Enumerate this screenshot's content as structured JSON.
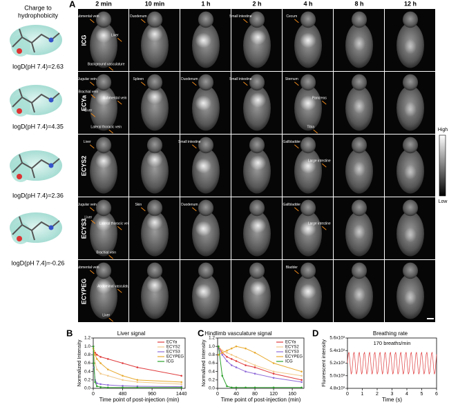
{
  "molecules": {
    "title": [
      "Charge to",
      "hydrophobicity"
    ],
    "labels": [
      "logD(pH 7.4)=2.63",
      "logD(pH 7.4)=4.35",
      "logD(pH 7.4)=2.36",
      "logD(pH 7.4)=-0.26"
    ]
  },
  "panel_a": {
    "letter": "A",
    "columns": [
      "2 min",
      "10 min",
      "1 h",
      "2 h",
      "4 h",
      "8 h",
      "12 h"
    ],
    "rows": [
      {
        "label": "ICG",
        "cells": [
          [
            "Submental vein",
            "Liver",
            "Background vasculature"
          ],
          [
            "Duodenum"
          ],
          [],
          [
            "Small intestine"
          ],
          [
            "Cecum"
          ],
          [],
          []
        ]
      },
      {
        "label": "ECYa",
        "cells": [
          [
            "Jugular vein",
            "Submental vein",
            "Lateral thoracic vein",
            "Brachial vein",
            "Liver"
          ],
          [
            "Spleen"
          ],
          [
            "Duodenum"
          ],
          [
            "Small intestine"
          ],
          [
            "Sternum",
            "Pancreas",
            "Tibia"
          ],
          [],
          []
        ]
      },
      {
        "label": "ECYS2",
        "cells": [
          [
            "Liver"
          ],
          [],
          [
            "Small intestine"
          ],
          [],
          [
            "Gallbladder",
            "Large intestine"
          ],
          [],
          []
        ]
      },
      {
        "label": "ECYS3",
        "cells": [
          [
            "Jugular vein",
            "Lateral thoracic vein",
            "Brachial vein",
            "Liver"
          ],
          [
            "Skin"
          ],
          [
            "Duodenum"
          ],
          [],
          [
            "Gallbladder",
            "Large intestine"
          ],
          [],
          []
        ]
      },
      {
        "label": "ECYPEG",
        "cells": [
          [
            "Submental vein",
            "Abdominal vasculature",
            "Liver"
          ],
          [],
          [],
          [],
          [
            "Bladder"
          ],
          [],
          []
        ]
      }
    ],
    "colorbar": {
      "high": "High",
      "low": "Low"
    }
  },
  "chart_data": [
    {
      "type": "line",
      "panel": "B",
      "title": "Liver signal",
      "x_label": "Time point of post-injection (min)",
      "y_label": "Normalized Intensity",
      "x": [
        2,
        10,
        30,
        60,
        120,
        240,
        480,
        720,
        1440
      ],
      "xlim": [
        0,
        1500
      ],
      "xticks": [
        0,
        480,
        960,
        1440
      ],
      "ylim": [
        0,
        1.2
      ],
      "yticks": [
        {
          "value": 0,
          "label": "0.0"
        },
        0.2,
        0.4,
        0.6,
        0.8,
        {
          "value": 1,
          "label": "1.0"
        },
        1.2
      ],
      "legend": "upper right",
      "series": [
        {
          "name": "ECYa",
          "color": "#e03a3c",
          "values": [
            1.0,
            0.85,
            0.85,
            0.8,
            0.75,
            0.7,
            0.6,
            0.5,
            0.3
          ]
        },
        {
          "name": "ECYS2",
          "color": "#f2c98a",
          "values": [
            0.95,
            0.8,
            0.6,
            0.45,
            0.35,
            0.3,
            0.2,
            0.15,
            0.1
          ]
        },
        {
          "name": "ECYS3",
          "color": "#8f6ad8",
          "values": [
            1.0,
            0.5,
            0.2,
            0.12,
            0.1,
            0.08,
            0.06,
            0.05,
            0.04
          ]
        },
        {
          "name": "ECYPEG",
          "color": "#e8aa2e",
          "values": [
            0.95,
            0.9,
            0.8,
            0.7,
            0.6,
            0.45,
            0.3,
            0.2,
            0.15
          ]
        },
        {
          "name": "ICG",
          "color": "#2ca02c",
          "values": [
            1.0,
            0.6,
            0.15,
            0.05,
            0.03,
            0.02,
            0.02,
            0.02,
            0.02
          ]
        }
      ]
    },
    {
      "type": "line",
      "panel": "C",
      "title": "Hindlimb vasculature signal",
      "x_label": "Time point of post-injection (min)",
      "y_label": "Normalized Intensity",
      "x": [
        2,
        10,
        20,
        30,
        40,
        60,
        80,
        120,
        180
      ],
      "xlim": [
        0,
        185
      ],
      "xticks": [
        0,
        40,
        80,
        120,
        160
      ],
      "ylim": [
        0,
        1.2
      ],
      "yticks": [
        {
          "value": 0,
          "label": "0.0"
        },
        0.2,
        0.4,
        0.6,
        0.8,
        {
          "value": 1,
          "label": "1.0"
        },
        1.2
      ],
      "legend": "upper right",
      "series": [
        {
          "name": "ECYa",
          "color": "#e03a3c",
          "values": [
            1.0,
            0.85,
            0.75,
            0.7,
            0.65,
            0.55,
            0.5,
            0.35,
            0.2
          ]
        },
        {
          "name": "ECYS2",
          "color": "#f2c98a",
          "values": [
            1.0,
            0.9,
            0.85,
            0.8,
            0.75,
            0.65,
            0.55,
            0.4,
            0.3
          ]
        },
        {
          "name": "ECYS3",
          "color": "#8f6ad8",
          "values": [
            0.95,
            0.8,
            0.65,
            0.55,
            0.5,
            0.4,
            0.35,
            0.25,
            0.15
          ]
        },
        {
          "name": "ECYPEG",
          "color": "#e8aa2e",
          "values": [
            0.8,
            0.85,
            0.9,
            0.95,
            1.0,
            0.95,
            0.85,
            0.6,
            0.4
          ]
        },
        {
          "name": "ICG",
          "color": "#2ca02c",
          "values": [
            1.0,
            0.3,
            0.05,
            0.02,
            0.02,
            0.02,
            0.02,
            0.02,
            0.02
          ]
        }
      ]
    },
    {
      "type": "line",
      "panel": "D",
      "title": "Breathing rate",
      "x_label": "Time (s)",
      "y_label": "Fluorescent intensity",
      "annotation": "170 breaths/min",
      "color": "#e03a3c",
      "x": [
        0,
        0.05,
        0.1,
        0.15,
        0.2,
        0.25,
        0.3,
        0.35,
        0.4,
        0.45,
        0.5,
        0.55,
        0.6,
        0.65,
        0.7,
        0.75,
        0.8,
        0.85,
        0.9,
        0.95,
        1,
        1.05,
        1.1,
        1.15,
        1.2,
        1.25,
        1.3,
        1.35,
        1.4,
        1.45,
        1.5,
        1.55,
        1.6,
        1.65,
        1.7,
        1.75,
        1.8,
        1.85,
        1.9,
        1.95,
        2,
        2.05,
        2.1,
        2.15,
        2.2,
        2.25,
        2.3,
        2.35,
        2.4,
        2.45,
        2.5,
        2.55,
        2.6,
        2.65,
        2.7,
        2.75,
        2.8,
        2.85,
        2.9,
        2.95,
        3,
        3.05,
        3.1,
        3.15,
        3.2,
        3.25,
        3.3,
        3.35,
        3.4,
        3.45,
        3.5,
        3.55,
        3.6,
        3.65,
        3.7,
        3.75,
        3.8,
        3.85,
        3.9,
        3.95,
        4,
        4.05,
        4.1,
        4.15,
        4.2,
        4.25,
        4.3,
        4.35,
        4.4,
        4.45,
        4.5,
        4.55,
        4.6,
        4.65,
        4.7,
        4.75,
        4.8,
        4.85,
        4.9,
        4.95,
        5,
        5.05,
        5.1,
        5.15,
        5.2,
        5.25,
        5.3,
        5.35,
        5.4,
        5.45,
        5.5,
        5.55,
        5.6,
        5.65,
        5.7,
        5.75,
        5.8,
        5.85,
        5.9,
        5.95,
        6
      ],
      "values": [
        5200,
        5341,
        5375,
        5278,
        5122,
        5025,
        5059,
        5200,
        5341,
        5375,
        5278,
        5122,
        5025,
        5059,
        5200,
        5341,
        5375,
        5278,
        5122,
        5025,
        5059,
        5200,
        5341,
        5375,
        5278,
        5122,
        5025,
        5059,
        5200,
        5341,
        5375,
        5278,
        5122,
        5025,
        5059,
        5200,
        5341,
        5375,
        5278,
        5122,
        5025,
        5059,
        5200,
        5341,
        5375,
        5278,
        5122,
        5025,
        5059,
        5200,
        5341,
        5375,
        5278,
        5122,
        5025,
        5059,
        5200,
        5341,
        5375,
        5278,
        5122,
        5025,
        5059,
        5200,
        5341,
        5375,
        5278,
        5122,
        5025,
        5059,
        5200,
        5341,
        5375,
        5278,
        5122,
        5025,
        5059,
        5200,
        5341,
        5375,
        5278,
        5122,
        5025,
        5059,
        5200,
        5341,
        5375,
        5278,
        5122,
        5025,
        5059,
        5200,
        5341,
        5375,
        5278,
        5122,
        5025,
        5059,
        5200,
        5341,
        5375,
        5278,
        5122,
        5025,
        5059,
        5200,
        5341,
        5375,
        5278,
        5122,
        5025,
        5059,
        5200,
        5341,
        5375,
        5278,
        5122,
        5025,
        5059,
        5200,
        5341
      ],
      "xlim": [
        0,
        6
      ],
      "xticks": [
        0,
        1,
        2,
        3,
        4,
        5,
        6
      ],
      "ylim": [
        4800,
        5600
      ],
      "yticks": [
        {
          "value": 4800,
          "label": "4.8x10³"
        },
        {
          "value": 5000,
          "label": "5.0x10³"
        },
        {
          "value": 5200,
          "label": "5.2x10³"
        },
        {
          "value": 5400,
          "label": "5.4x10³"
        },
        {
          "value": 5600,
          "label": "5.6x10³"
        }
      ]
    }
  ]
}
